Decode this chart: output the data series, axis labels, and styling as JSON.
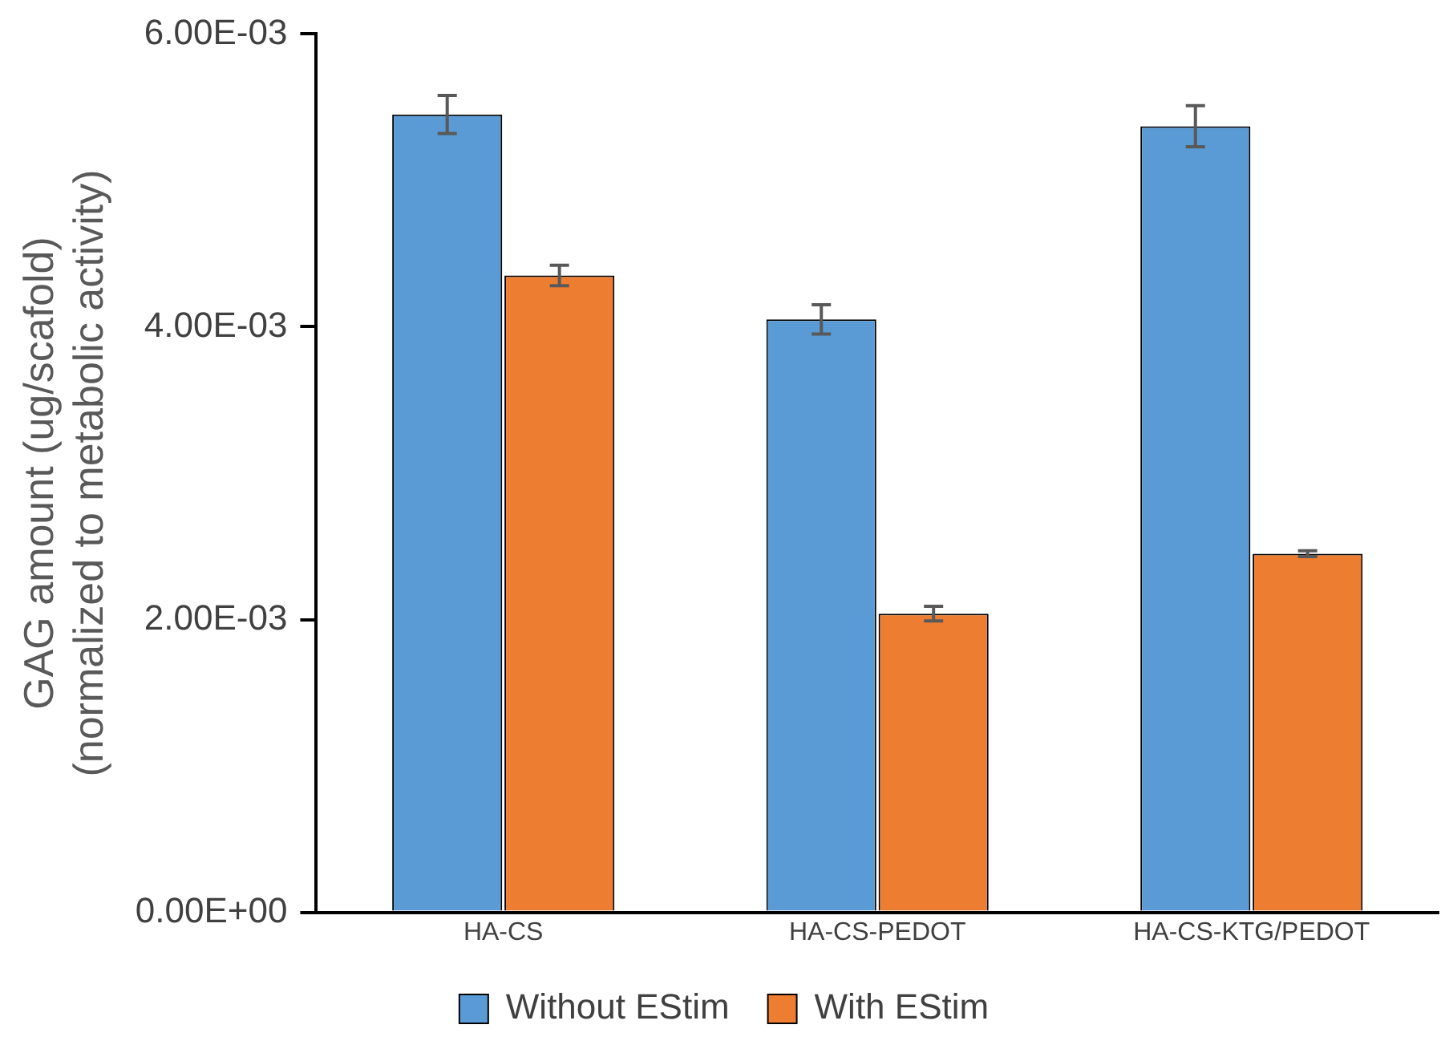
{
  "chart_data": {
    "type": "bar",
    "ylabel": "GAG amount (ug/scafold)\n(normalized to metabolic activity)",
    "categories": [
      "HA-CS",
      "HA-CS-PEDOT",
      "HA-CS-KTG/PEDOT"
    ],
    "series": [
      {
        "name": "Without EStim",
        "color": "#5b9bd5",
        "values": [
          0.00545,
          0.00405,
          0.00537
        ],
        "errors": [
          0.00013,
          0.0001,
          0.00014
        ]
      },
      {
        "name": "With EStim",
        "color": "#ed7d31",
        "values": [
          0.00435,
          0.00204,
          0.00245
        ],
        "errors": [
          7e-05,
          5e-05,
          2e-05
        ]
      }
    ],
    "ylim": [
      0,
      0.006
    ],
    "yticks": [
      {
        "value": 0,
        "label": "0.00E+00"
      },
      {
        "value": 0.002,
        "label": "2.00E-03"
      },
      {
        "value": 0.004,
        "label": "4.00E-03"
      },
      {
        "value": 0.006,
        "label": "6.00E-03"
      }
    ],
    "legend": "bottom"
  }
}
